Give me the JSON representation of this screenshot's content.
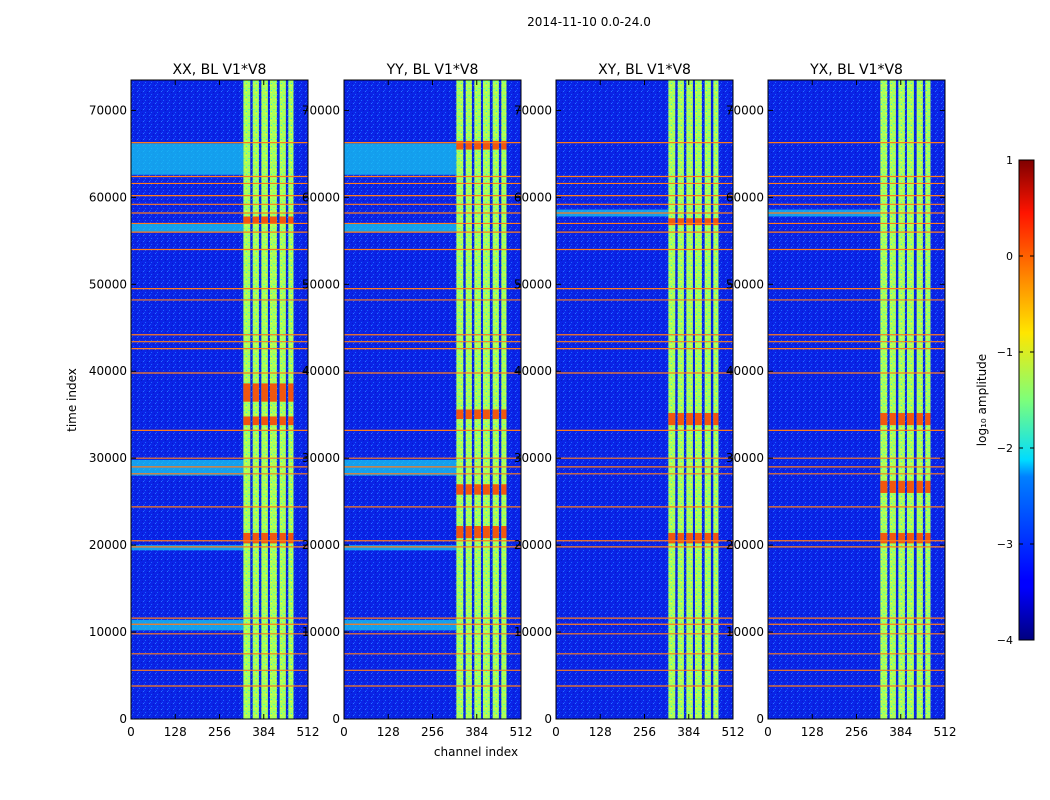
{
  "chart_data": {
    "type": "heatmap",
    "title": "2014-11-10 0.0-24.0",
    "xlabel": "channel index",
    "ylabel": "time index",
    "xlim": [
      0,
      512
    ],
    "ylim": [
      0,
      73500
    ],
    "x_ticks": [
      0,
      128,
      256,
      384,
      512
    ],
    "y_ticks": [
      0,
      10000,
      20000,
      30000,
      40000,
      50000,
      60000,
      70000
    ],
    "panels": [
      {
        "title": "XX, BL V1*V8",
        "flagged": [
          3800,
          5600,
          7500,
          9800,
          10900,
          11600,
          19800,
          20500,
          24400,
          28200,
          29000,
          30000,
          33200,
          39800,
          42600,
          43400,
          44200,
          48200,
          49500,
          54000,
          56000,
          57000,
          58200,
          59200,
          60200,
          61600,
          62400,
          66300
        ],
        "strong_bands": [
          [
            33800,
            34800
          ],
          [
            20200,
            21400
          ],
          [
            36500,
            38600
          ],
          [
            57000,
            57800
          ]
        ],
        "bright_strips": [
          [
            62600,
            66200
          ],
          [
            10200,
            11400
          ],
          [
            28000,
            29800
          ],
          [
            19400,
            20000
          ],
          [
            56000,
            57000
          ]
        ]
      },
      {
        "title": "YY, BL V1*V8",
        "flagged": [
          3800,
          5600,
          7500,
          9800,
          10900,
          11600,
          19800,
          20500,
          24400,
          28200,
          29000,
          30000,
          33200,
          39800,
          42600,
          43400,
          44200,
          48200,
          49500,
          54000,
          56000,
          57000,
          58200,
          59200,
          60200,
          61600,
          62400,
          66300
        ],
        "strong_bands": [
          [
            34500,
            35600
          ],
          [
            20800,
            22200
          ],
          [
            65500,
            66500
          ],
          [
            25800,
            27000
          ]
        ],
        "bright_strips": [
          [
            62600,
            66200
          ],
          [
            10200,
            11400
          ],
          [
            28000,
            29800
          ],
          [
            19400,
            20000
          ],
          [
            56000,
            57000
          ]
        ]
      },
      {
        "title": "XY, BL V1*V8",
        "flagged": [
          3800,
          5600,
          7500,
          9800,
          10900,
          11600,
          19800,
          20500,
          24400,
          28200,
          29000,
          30000,
          33200,
          39800,
          42600,
          43400,
          44200,
          48200,
          49500,
          54000,
          56000,
          57000,
          58200,
          59200,
          60200,
          61600,
          62400,
          66300
        ],
        "strong_bands": [
          [
            33800,
            35200
          ],
          [
            20200,
            21400
          ],
          [
            56800,
            57600
          ]
        ],
        "bright_strips": [
          [
            57800,
            58600
          ]
        ]
      },
      {
        "title": "YX, BL V1*V8",
        "flagged": [
          3800,
          5600,
          7500,
          9800,
          10900,
          11600,
          19800,
          20500,
          24400,
          28200,
          29000,
          30000,
          33200,
          39800,
          42600,
          43400,
          44200,
          48200,
          49500,
          54000,
          56000,
          57000,
          58200,
          59200,
          60200,
          61600,
          62400,
          66300
        ],
        "strong_bands": [
          [
            33800,
            35200
          ],
          [
            20200,
            21400
          ],
          [
            26000,
            27400
          ]
        ],
        "bright_strips": [
          [
            57800,
            58600
          ]
        ]
      }
    ],
    "rfi_channels": [
      [
        325,
        345
      ],
      [
        352,
        370
      ],
      [
        377,
        396
      ],
      [
        402,
        422
      ],
      [
        430,
        448
      ],
      [
        455,
        470
      ]
    ],
    "colorbar": {
      "label": "log₁₀ amplitude",
      "min": -4,
      "max": 1,
      "ticks": [
        1,
        0,
        -1,
        -2,
        -3,
        -4
      ],
      "colormap": "jet"
    }
  },
  "colors": {
    "background": "#0a1fe0",
    "flag_line": "#ff7a1a",
    "axis": "#000000"
  }
}
